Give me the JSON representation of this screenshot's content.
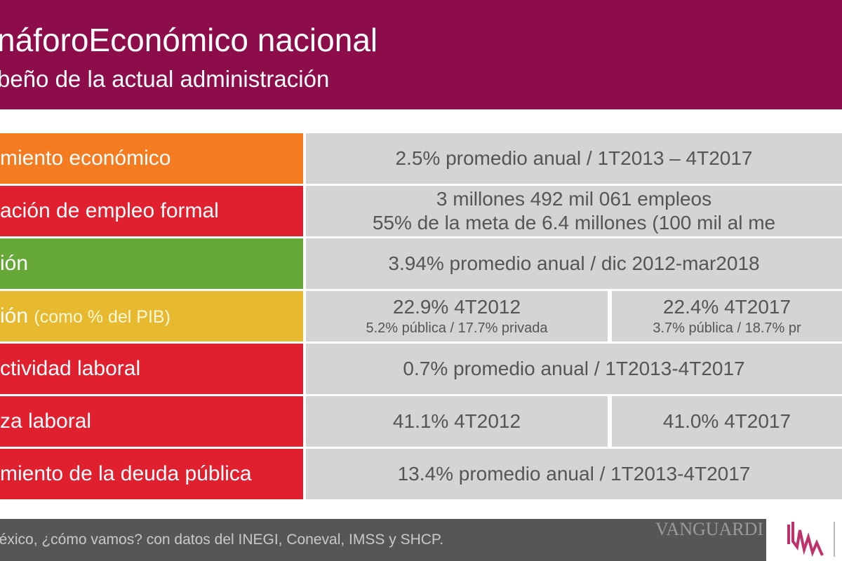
{
  "header": {
    "title": "náforoEconómico nacional",
    "subtitle": "beño de la actual administración"
  },
  "rows": [
    {
      "label": "miento económico",
      "color": "#f47b20",
      "cells": [
        [
          "2.5% promedio anual / 1T2013 – 4T2017"
        ]
      ]
    },
    {
      "label": "ación de empleo formal",
      "color": "#e01f2f",
      "cells": [
        [
          "3 millones 492 mil 061 empleos",
          "55% de la meta de 6.4 millones (100 mil al me"
        ]
      ]
    },
    {
      "label": "ión",
      "color": "#67a939",
      "cells": [
        [
          "3.94% promedio anual / dic 2012-mar2018"
        ]
      ]
    },
    {
      "label": "ión",
      "note": "(como % del PIB)",
      "color": "#e6b92e",
      "cells": [
        [
          "22.9% 4T2012",
          "5.2% pública / 17.7% privada"
        ],
        [
          "22.4% 4T2017",
          "3.7% pública / 18.7% pr"
        ]
      ]
    },
    {
      "label": "ctividad laboral",
      "color": "#e01f2f",
      "cells": [
        [
          "0.7% promedio anual / 1T2013-4T2017"
        ]
      ]
    },
    {
      "label": "za laboral",
      "color": "#e01f2f",
      "cells": [
        [
          "41.1% 4T2012"
        ],
        [
          "41.0% 4T2017"
        ]
      ]
    },
    {
      "label": "miento de la deuda pública",
      "color": "#e01f2f",
      "cells": [
        [
          "13.4% promedio anual / 1T2013-4T2017"
        ]
      ]
    }
  ],
  "footer": {
    "source": "léxico, ¿cómo vamos? con datos del INEGI, Coneval, IMSS y SHCP.",
    "watermark": "VANGUARDI"
  }
}
